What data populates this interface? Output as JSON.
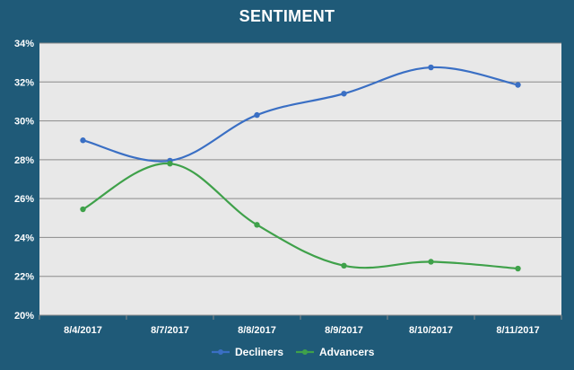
{
  "chart_data": {
    "type": "line",
    "title": "SENTIMENT",
    "categories": [
      "8/4/2017",
      "8/7/2017",
      "8/8/2017",
      "8/9/2017",
      "8/10/2017",
      "8/11/2017"
    ],
    "series": [
      {
        "name": "Decliners",
        "color": "#3a6fc4",
        "values": [
          29.0,
          27.95,
          30.3,
          31.4,
          32.75,
          31.85
        ]
      },
      {
        "name": "Advancers",
        "color": "#3fa14a",
        "values": [
          25.45,
          27.8,
          24.65,
          22.55,
          22.75,
          22.4
        ]
      }
    ],
    "ylim": [
      20,
      34
    ],
    "yticks": [
      20,
      22,
      24,
      26,
      28,
      30,
      32,
      34
    ],
    "ytick_labels": [
      "20%",
      "22%",
      "24%",
      "26%",
      "28%",
      "30%",
      "32%",
      "34%"
    ],
    "grid": true,
    "legend": "bottom-center",
    "colors": {
      "plot_background": "#e8e8e8",
      "frame": "#1f5a78",
      "gridline": "#8a8a8a"
    }
  }
}
